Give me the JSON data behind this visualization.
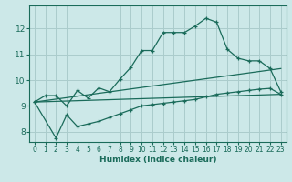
{
  "xlabel": "Humidex (Indice chaleur)",
  "bg_color": "#cce8e8",
  "grid_color": "#aacccc",
  "line_color": "#1a6b5a",
  "xlim": [
    -0.5,
    23.5
  ],
  "ylim": [
    7.6,
    12.9
  ],
  "xticks": [
    0,
    1,
    2,
    3,
    4,
    5,
    6,
    7,
    8,
    9,
    10,
    11,
    12,
    13,
    14,
    15,
    16,
    17,
    18,
    19,
    20,
    21,
    22,
    23
  ],
  "yticks": [
    8,
    9,
    10,
    11,
    12
  ],
  "curve1_x": [
    0,
    1,
    2,
    3,
    4,
    5,
    6,
    7,
    8,
    9,
    10,
    11,
    12,
    13,
    14,
    15,
    16,
    17,
    18,
    19,
    20,
    21,
    22,
    23
  ],
  "curve1_y": [
    9.15,
    9.4,
    9.4,
    9.0,
    9.6,
    9.3,
    9.7,
    9.55,
    10.05,
    10.5,
    11.15,
    11.15,
    11.85,
    11.85,
    11.85,
    12.1,
    12.4,
    12.25,
    11.2,
    10.85,
    10.75,
    10.75,
    10.45,
    9.55
  ],
  "curve2_x": [
    0,
    2,
    3,
    4,
    5,
    6,
    7,
    8,
    9,
    10,
    11,
    12,
    13,
    14,
    15,
    16,
    17,
    18,
    19,
    20,
    21,
    22,
    23
  ],
  "curve2_y": [
    9.15,
    7.75,
    8.65,
    8.2,
    8.3,
    8.4,
    8.55,
    8.7,
    8.85,
    9.0,
    9.05,
    9.1,
    9.15,
    9.2,
    9.25,
    9.35,
    9.45,
    9.5,
    9.55,
    9.6,
    9.65,
    9.68,
    9.45
  ],
  "line1_x": [
    0,
    23
  ],
  "line1_y": [
    9.15,
    9.45
  ],
  "line2_x": [
    0,
    23
  ],
  "line2_y": [
    9.15,
    10.45
  ]
}
